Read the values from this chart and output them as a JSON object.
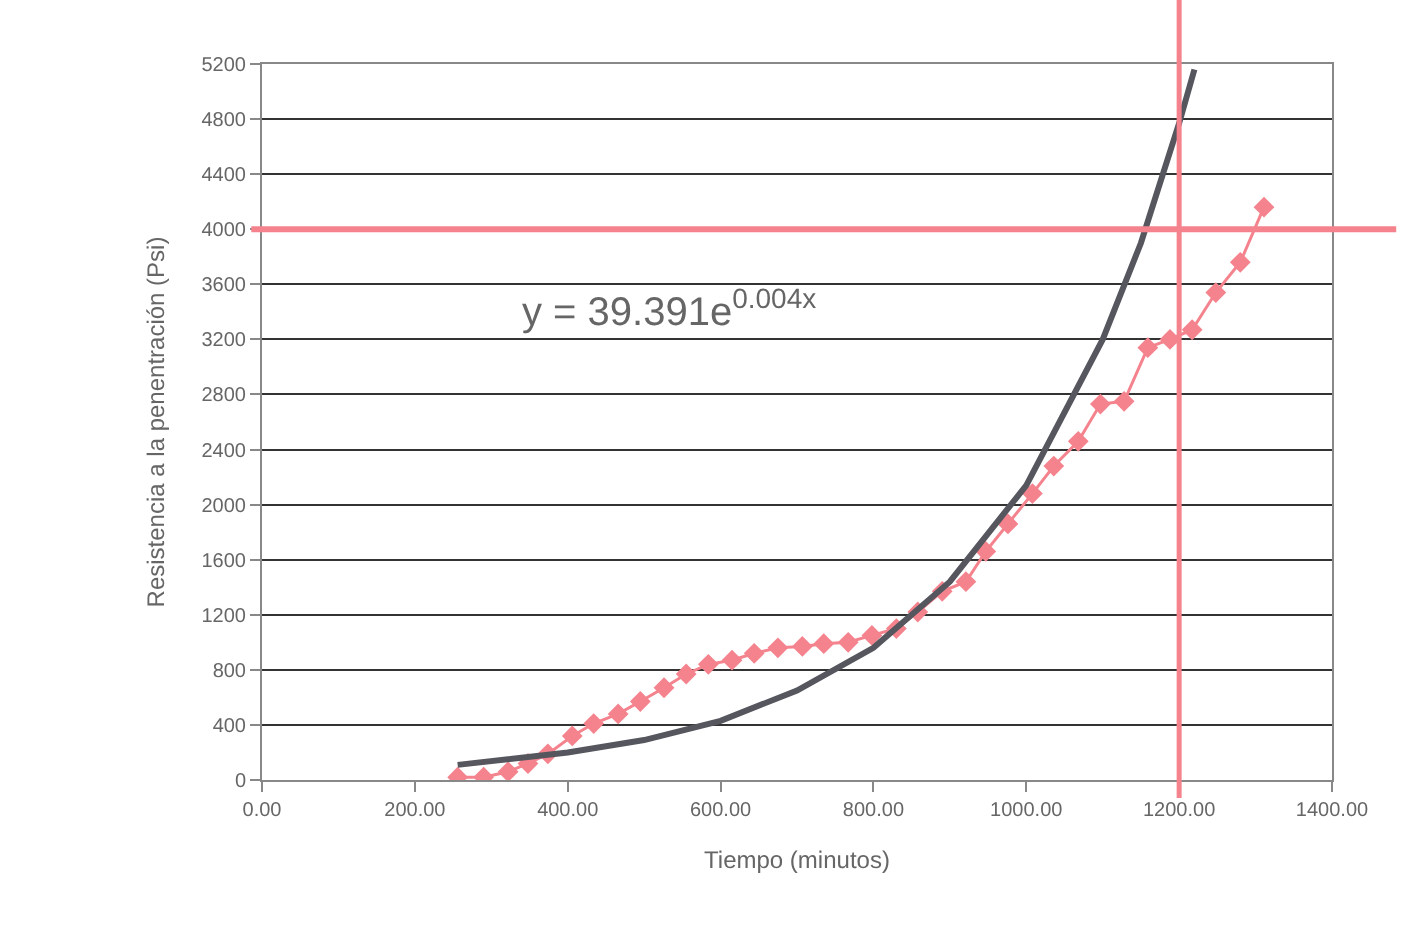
{
  "chart_data": {
    "type": "line",
    "xlabel": "Tiempo (minutos)",
    "ylabel": "Resistencia a la penentración (Psi)",
    "annotations": [
      "y = 39.391e$^{0.004x}$"
    ],
    "series": [
      {
        "color": "#f4838e",
        "marker": "diamond",
        "x": [
          256,
          290,
          322,
          348,
          374,
          406,
          434,
          466,
          495,
          526,
          555,
          584,
          615,
          644,
          675,
          707,
          735,
          767,
          798,
          830,
          858,
          890,
          921,
          947,
          976,
          1008,
          1036,
          1068,
          1097,
          1128,
          1159,
          1188,
          1217,
          1248,
          1280,
          1311
        ],
        "values": [
          20,
          20,
          60,
          120,
          190,
          320,
          410,
          480,
          570,
          670,
          770,
          840,
          870,
          920,
          960,
          970,
          990,
          1000,
          1050,
          1100,
          1220,
          1370,
          1440,
          1660,
          1860,
          2080,
          2280,
          2460,
          2730,
          2750,
          3140,
          3200,
          3270,
          3540,
          3760,
          4160
        ]
      },
      {
        "color": "#55565e",
        "marker": "none",
        "x": [
          256,
          400,
          500,
          600,
          700,
          800,
          900,
          1000,
          1100,
          1150,
          1200,
          1220
        ],
        "values": [
          110,
          200,
          290,
          430,
          650,
          960,
          1440,
          2140,
          3200,
          3900,
          4770,
          5160
        ]
      }
    ],
    "xlim": [
      0,
      1400
    ],
    "xticks": [
      {
        "value": 0,
        "label": "0.00"
      },
      {
        "value": 200,
        "label": "200.00"
      },
      {
        "value": 400,
        "label": "400.00"
      },
      {
        "value": 600,
        "label": "600.00"
      },
      {
        "value": 800,
        "label": "800.00"
      },
      {
        "value": 1000,
        "label": "1000.00"
      },
      {
        "value": 1200,
        "label": "1200.00"
      },
      {
        "value": 1400,
        "label": "1400.00"
      }
    ],
    "ylim": [
      0,
      5200
    ],
    "yticks": [
      0,
      400,
      800,
      1200,
      1600,
      2000,
      2400,
      2800,
      3200,
      3600,
      4000,
      4400,
      4800,
      5200
    ],
    "ref_lines": [
      {
        "axis": "y",
        "value": 4000,
        "color": "#f4838e"
      },
      {
        "axis": "x",
        "value": 1200,
        "color": "#f4838e"
      }
    ],
    "grid": "y"
  }
}
